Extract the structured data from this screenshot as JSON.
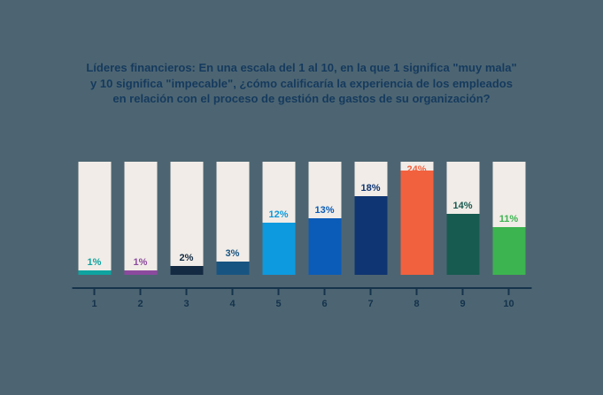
{
  "title_lines": [
    "Líderes financieros: En una escala del 1 al 10, en la que 1 significa \"muy mala\"",
    "y 10 significa \"impecable\", ¿cómo calificaría la experiencia de los empleados",
    "en relación con el proceso de gestión de gastos de su organización?"
  ],
  "colors": {
    "background": "#4D6572",
    "bar_track": "#F1ECE7",
    "title_text": "#153A5E",
    "axis": "#16334C",
    "tick_label": "#14324C"
  },
  "chart_data": {
    "type": "bar",
    "title": "Líderes financieros: En una escala del 1 al 10, en la que 1 significa \"muy mala\" y 10 significa \"impecable\", ¿cómo calificaría la experiencia de los empleados en relación con el proceso de gestión de gastos de su organización?",
    "categories": [
      "1",
      "2",
      "3",
      "4",
      "5",
      "6",
      "7",
      "8",
      "9",
      "10"
    ],
    "values": [
      1,
      1,
      2,
      3,
      12,
      13,
      18,
      24,
      14,
      11
    ],
    "labels": [
      "1%",
      "1%",
      "2%",
      "3%",
      "12%",
      "13%",
      "18%",
      "24%",
      "14%",
      "11%"
    ],
    "bar_colors": [
      "#0FA3A0",
      "#8C4A9E",
      "#132A42",
      "#175482",
      "#0D9ADE",
      "#0B5CB8",
      "#0F3572",
      "#F2613E",
      "#175A50",
      "#3CB450"
    ],
    "xlabel": "",
    "ylabel": "",
    "ylim": [
      0,
      26
    ],
    "grid": false,
    "legend": false,
    "notes": "Each bar drawn on a full-height cream track; percentage label sits above the fill in the same color as the fill."
  }
}
